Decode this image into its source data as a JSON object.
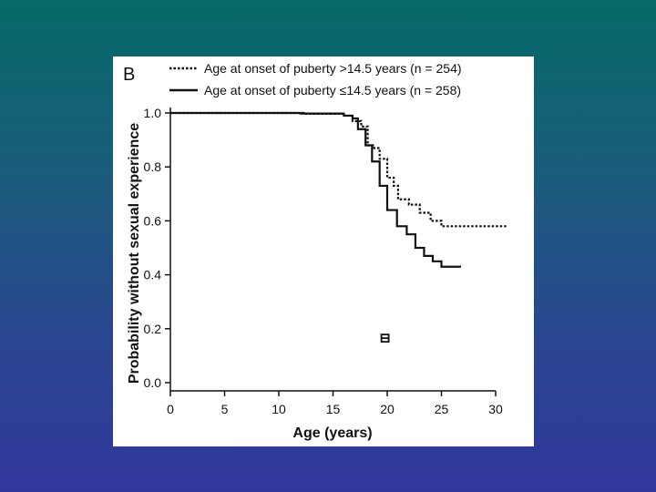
{
  "figure": {
    "panel_label": "B",
    "colors": {
      "background_top": "#056a68",
      "background_bottom": "#30389c",
      "ink": "#111111"
    }
  },
  "chart_data": {
    "type": "line",
    "title": "",
    "xlabel": "Age (years)",
    "ylabel": "Probability without sexual experience",
    "xlim": [
      0,
      30
    ],
    "ylim": [
      0,
      1.0
    ],
    "xticks": [
      "0",
      "5",
      "10",
      "15",
      "20",
      "25",
      "30"
    ],
    "yticks": [
      "0.0",
      "0.2",
      "0.4",
      "0.6",
      "0.8",
      "1.0"
    ],
    "legend_position": "top",
    "series": [
      {
        "name": "Age at onset of puberty >14.5 years (n = 254)",
        "style": "dotted",
        "x": [
          0,
          12.3,
          16.0,
          16.8,
          17.6,
          18.2,
          18.8,
          19.3,
          20.0,
          20.6,
          21.0,
          22.0,
          23.0,
          24.0,
          25.0,
          31.0
        ],
        "y": [
          1.0,
          0.997,
          0.99,
          0.97,
          0.95,
          0.88,
          0.87,
          0.83,
          0.76,
          0.73,
          0.68,
          0.66,
          0.63,
          0.6,
          0.58,
          0.58
        ]
      },
      {
        "name": "Age at onset of puberty ≤14.5 years (n = 258)",
        "style": "solid",
        "x": [
          0,
          12.0,
          16.0,
          16.8,
          17.3,
          18.0,
          18.6,
          19.3,
          20.0,
          20.9,
          21.8,
          22.6,
          23.4,
          24.2,
          25.0,
          26.8
        ],
        "y": [
          1.0,
          0.998,
          0.99,
          0.98,
          0.94,
          0.88,
          0.82,
          0.73,
          0.64,
          0.58,
          0.55,
          0.5,
          0.47,
          0.45,
          0.43,
          0.43
        ]
      }
    ],
    "annotations": [
      {
        "label": "censoring marker",
        "x": 19.8,
        "y": 0.165
      }
    ]
  }
}
